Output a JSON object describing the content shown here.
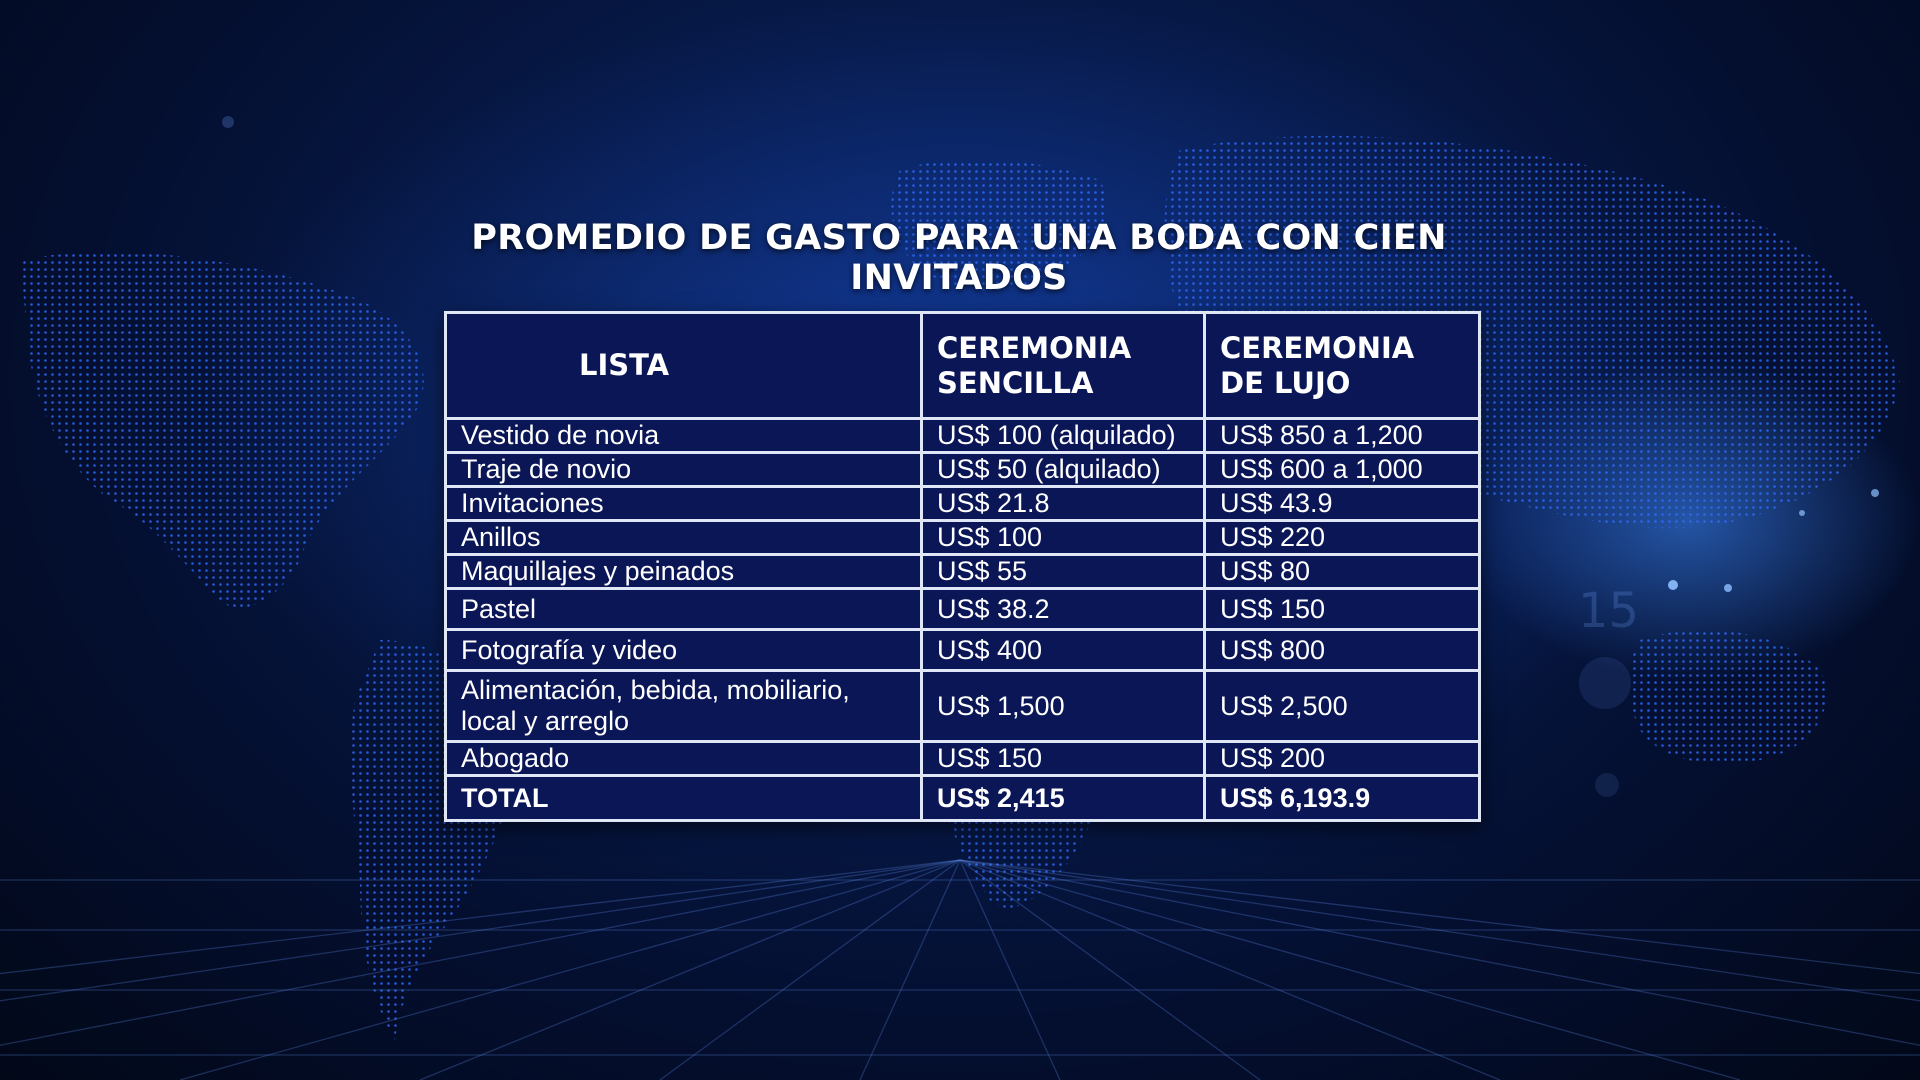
{
  "title": "PROMEDIO DE GASTO PARA UNA BODA CON CIEN INVITADOS",
  "background_number": "15",
  "colors": {
    "background": "#040f30",
    "table_fill": "#0b1657",
    "table_border": "#dfe6f5",
    "text": "#ffffff",
    "map_dots": "#2f6cff"
  },
  "table": {
    "headers": [
      "LISTA",
      "CEREMONIA SENCILLA",
      "CEREMONIA  DE LUJO"
    ],
    "rows": [
      [
        "Vestido de novia",
        "US$ 100 (alquilado)",
        "US$ 850 a 1,200"
      ],
      [
        "Traje de novio",
        "US$ 50 (alquilado)",
        "US$ 600 a 1,000"
      ],
      [
        "Invitaciones",
        "US$ 21.8",
        "US$ 43.9"
      ],
      [
        "Anillos",
        "US$ 100",
        "US$ 220"
      ],
      [
        "Maquillajes y peinados",
        "US$ 55",
        "US$ 80"
      ],
      [
        "Pastel",
        "US$ 38.2",
        "US$ 150"
      ],
      [
        "Fotografía y video",
        "US$ 400",
        "US$ 800"
      ],
      [
        "Alimentación, bebida, mobiliario, local y arreglo",
        "US$ 1,500",
        "US$ 2,500"
      ],
      [
        "Abogado",
        "US$ 150",
        "US$ 200"
      ]
    ],
    "total": [
      "TOTAL",
      "US$ 2,415",
      "US$  6,193.9"
    ]
  }
}
